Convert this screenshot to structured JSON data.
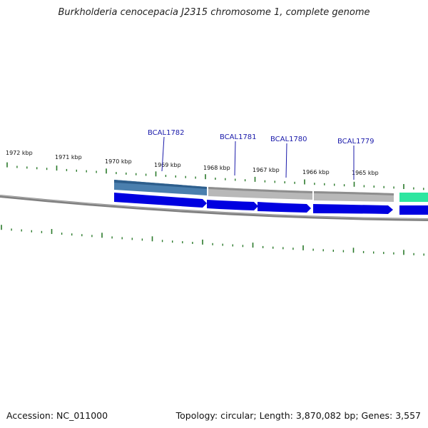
{
  "title": "Burkholderia cenocepacia J2315 chromosome 1, complete genome",
  "footer": {
    "accession": "Accession: NC_011000",
    "summary": "Topology: circular; Length: 3,870,082 bp; Genes: 3,557"
  },
  "kbp_labels": [
    "1972 kbp",
    "1971 kbp",
    "1970 kbp",
    "1969 kbp",
    "1968 kbp",
    "1967 kbp",
    "1966 kbp",
    "1965 kbp"
  ],
  "gene_labels": [
    "BCAL1782",
    "BCAL1781",
    "BCAL1780",
    "BCAL1779"
  ],
  "colors": {
    "tick": "#2a7a2a",
    "backbone": "#808080",
    "gene_forward": "#0000e0",
    "highlight_steel": "#4a7fae",
    "feature_gray": "#b8b8b8",
    "feature_teal": "#2ee6a0",
    "label_line": "#1a1aaa"
  }
}
